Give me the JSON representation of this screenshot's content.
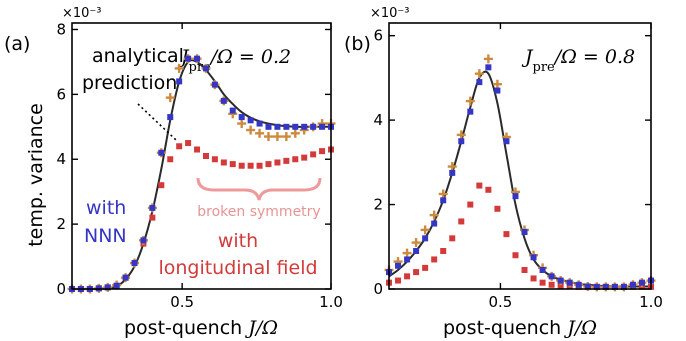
{
  "colors": {
    "nnn": "#3535c6",
    "longitudinal": "#d33a3a",
    "plus": "#cc8a3e",
    "theory": "#2a2a2a",
    "brace": "#ee9a9a",
    "broken_text": "#e89494"
  },
  "figure": {
    "ylabel": "temp. variance",
    "xlabel_text": "post-quench",
    "xlabel_math": "J/Ω"
  },
  "chart_data": [
    {
      "type": "scatter",
      "panel_label": "(a)",
      "title": "J_pre/Ω = 0.2",
      "title_prefix": "J",
      "title_sub": "pre",
      "title_suffix": "/Ω = 0.2",
      "exponent_label": "×10⁻³",
      "xlim": [
        0.13,
        1.0
      ],
      "ylim": [
        0,
        8.2
      ],
      "xticks": [
        0.5,
        1.0
      ],
      "xtick_labels": [
        "0.5",
        "1.0"
      ],
      "yticks": [
        0,
        2,
        4,
        6,
        8
      ],
      "ytick_labels": [
        "0",
        "2",
        "4",
        "6",
        "8"
      ],
      "annotations": {
        "theory_label": [
          "analytical",
          "prediction"
        ],
        "nnn_label": [
          "with",
          "NNN"
        ],
        "long_label": [
          "with",
          "longitudinal field"
        ],
        "broken_label": "broken symmetry"
      },
      "series": [
        {
          "name": "analytical prediction",
          "kind": "line",
          "x": [
            0.13,
            0.16,
            0.19,
            0.22,
            0.25,
            0.28,
            0.31,
            0.34,
            0.37,
            0.4,
            0.43,
            0.46,
            0.49,
            0.52,
            0.55,
            0.58,
            0.61,
            0.64,
            0.67,
            0.7,
            0.73,
            0.76,
            0.79,
            0.82,
            0.85,
            0.88,
            0.91,
            0.94,
            0.97,
            1.0
          ],
          "y": [
            0.0,
            0.0,
            0.0,
            0.0,
            0.02,
            0.08,
            0.3,
            0.7,
            1.4,
            2.4,
            3.7,
            5.2,
            6.4,
            7.0,
            7.0,
            6.75,
            6.4,
            6.0,
            5.7,
            5.45,
            5.28,
            5.17,
            5.1,
            5.05,
            5.02,
            5.0,
            5.0,
            5.0,
            5.0,
            5.0
          ]
        },
        {
          "name": "with NNN",
          "kind": "square",
          "x": [
            0.13,
            0.16,
            0.19,
            0.22,
            0.25,
            0.28,
            0.31,
            0.34,
            0.37,
            0.4,
            0.43,
            0.46,
            0.49,
            0.52,
            0.55,
            0.58,
            0.61,
            0.64,
            0.67,
            0.7,
            0.73,
            0.76,
            0.79,
            0.82,
            0.85,
            0.88,
            0.91,
            0.94,
            0.97,
            1.0
          ],
          "y": [
            0.0,
            0.0,
            0.0,
            0.02,
            0.05,
            0.1,
            0.35,
            0.8,
            1.5,
            2.5,
            4.2,
            5.3,
            6.4,
            7.1,
            7.1,
            6.8,
            6.3,
            5.8,
            5.5,
            5.3,
            5.2,
            5.1,
            5.0,
            5.0,
            5.0,
            5.0,
            5.0,
            5.0,
            5.0,
            5.0
          ]
        },
        {
          "name": "with longitudinal field",
          "kind": "square",
          "x": [
            0.13,
            0.16,
            0.19,
            0.22,
            0.25,
            0.28,
            0.31,
            0.34,
            0.37,
            0.4,
            0.43,
            0.46,
            0.49,
            0.52,
            0.55,
            0.58,
            0.61,
            0.64,
            0.67,
            0.7,
            0.73,
            0.76,
            0.79,
            0.82,
            0.85,
            0.88,
            0.91,
            0.94,
            0.97,
            1.0
          ],
          "y": [
            0.0,
            0.0,
            0.0,
            0.02,
            0.05,
            0.1,
            0.35,
            0.8,
            1.4,
            2.2,
            3.2,
            4.0,
            4.4,
            4.5,
            4.3,
            4.1,
            4.0,
            3.9,
            3.85,
            3.8,
            3.8,
            3.8,
            3.85,
            3.9,
            3.95,
            4.0,
            4.05,
            4.15,
            4.25,
            4.3
          ]
        },
        {
          "name": "+",
          "kind": "plus",
          "x": [
            0.13,
            0.16,
            0.19,
            0.22,
            0.25,
            0.28,
            0.31,
            0.34,
            0.37,
            0.4,
            0.43,
            0.46,
            0.49,
            0.52,
            0.55,
            0.58,
            0.61,
            0.64,
            0.67,
            0.7,
            0.73,
            0.76,
            0.79,
            0.82,
            0.85,
            0.88,
            0.91,
            0.94,
            0.97,
            1.0
          ],
          "y": [
            0.0,
            0.0,
            0.0,
            0.02,
            0.05,
            0.12,
            0.35,
            0.8,
            1.5,
            2.5,
            4.2,
            5.9,
            6.8,
            7.1,
            7.1,
            6.8,
            6.3,
            5.8,
            5.4,
            5.1,
            4.9,
            4.8,
            4.7,
            4.7,
            4.7,
            4.8,
            4.9,
            5.0,
            5.1,
            5.1
          ]
        }
      ]
    },
    {
      "type": "scatter",
      "panel_label": "(b)",
      "title": "J_pre/Ω = 0.8",
      "title_prefix": "J",
      "title_sub": "pre",
      "title_suffix": "/Ω = 0.8",
      "exponent_label": "×10⁻³",
      "xlim": [
        0.13,
        1.0
      ],
      "ylim": [
        0,
        6.3
      ],
      "xticks": [
        0.5,
        1.0
      ],
      "xtick_labels": [
        "0.5",
        "1.0"
      ],
      "yticks": [
        0,
        2,
        4,
        6
      ],
      "ytick_labels": [
        "0",
        "2",
        "4",
        "6"
      ],
      "series": [
        {
          "name": "analytical prediction",
          "kind": "line",
          "x": [
            0.13,
            0.16,
            0.19,
            0.22,
            0.25,
            0.28,
            0.31,
            0.34,
            0.37,
            0.4,
            0.43,
            0.46,
            0.49,
            0.52,
            0.55,
            0.58,
            0.61,
            0.64,
            0.67,
            0.7,
            0.73,
            0.76,
            0.79,
            0.82,
            0.85,
            0.88,
            0.91,
            0.94,
            0.97,
            1.0
          ],
          "y": [
            0.3,
            0.45,
            0.65,
            0.9,
            1.2,
            1.6,
            2.1,
            2.75,
            3.5,
            4.3,
            5.0,
            5.1,
            4.4,
            3.2,
            2.0,
            1.2,
            0.7,
            0.45,
            0.3,
            0.22,
            0.16,
            0.12,
            0.1,
            0.08,
            0.07,
            0.06,
            0.06,
            0.06,
            0.06,
            0.06
          ]
        },
        {
          "name": "with NNN",
          "kind": "square",
          "x": [
            0.13,
            0.16,
            0.19,
            0.22,
            0.25,
            0.28,
            0.31,
            0.34,
            0.37,
            0.4,
            0.43,
            0.46,
            0.49,
            0.52,
            0.55,
            0.58,
            0.61,
            0.64,
            0.67,
            0.7,
            0.73,
            0.76,
            0.79,
            0.82,
            0.85,
            0.88,
            0.91,
            0.94,
            0.97,
            1.0
          ],
          "y": [
            0.4,
            0.55,
            0.7,
            0.9,
            1.2,
            1.55,
            2.1,
            2.75,
            3.5,
            4.2,
            4.9,
            5.25,
            4.7,
            3.5,
            2.2,
            1.35,
            0.75,
            0.45,
            0.3,
            0.2,
            0.15,
            0.1,
            0.06,
            0.05,
            0.05,
            0.05,
            0.05,
            0.1,
            0.15,
            0.2
          ]
        },
        {
          "name": "with longitudinal field",
          "kind": "square",
          "x": [
            0.13,
            0.16,
            0.19,
            0.22,
            0.25,
            0.28,
            0.31,
            0.34,
            0.37,
            0.4,
            0.43,
            0.46,
            0.49,
            0.52,
            0.55,
            0.58,
            0.61,
            0.64,
            0.67,
            0.7,
            0.73,
            0.76,
            0.79,
            0.82,
            0.85,
            0.88,
            0.91,
            0.94,
            0.97,
            1.0
          ],
          "y": [
            0.15,
            0.2,
            0.3,
            0.4,
            0.5,
            0.7,
            0.9,
            1.2,
            1.6,
            2.0,
            2.45,
            2.35,
            1.9,
            1.3,
            0.8,
            0.45,
            0.25,
            0.15,
            0.1,
            0.08,
            0.06,
            0.05,
            0.05,
            0.05,
            0.05,
            0.05,
            0.05,
            0.05,
            0.05,
            0.05
          ]
        },
        {
          "name": "+",
          "kind": "plus",
          "x": [
            0.13,
            0.16,
            0.19,
            0.22,
            0.25,
            0.28,
            0.31,
            0.34,
            0.37,
            0.4,
            0.43,
            0.46,
            0.49,
            0.52,
            0.55,
            0.58,
            0.61,
            0.64,
            0.67,
            0.7,
            0.73,
            0.76,
            0.79,
            0.82,
            0.85,
            0.88,
            0.91,
            0.94,
            0.97,
            1.0
          ],
          "y": [
            0.45,
            0.65,
            0.85,
            1.1,
            1.4,
            1.75,
            2.25,
            2.9,
            3.65,
            4.45,
            5.1,
            5.45,
            4.85,
            3.6,
            2.3,
            1.4,
            0.8,
            0.5,
            0.3,
            0.2,
            0.15,
            0.1,
            0.06,
            0.05,
            0.05,
            0.05,
            0.05,
            0.1,
            0.15,
            0.2
          ]
        }
      ]
    }
  ]
}
